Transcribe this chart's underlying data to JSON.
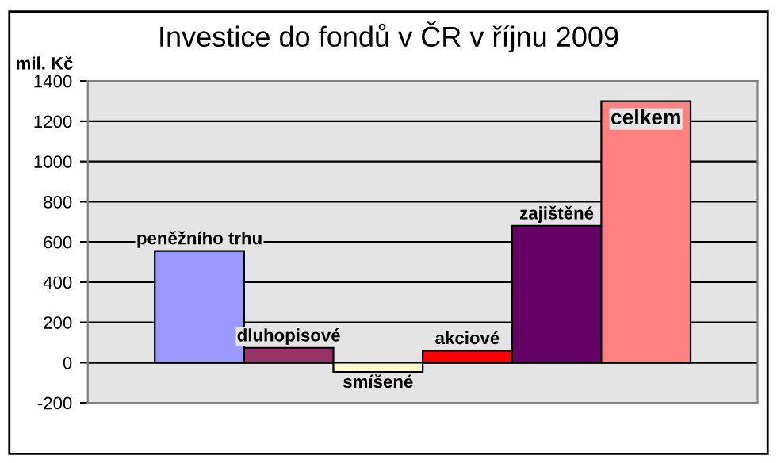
{
  "chart_data": {
    "type": "bar",
    "title": "Investice do fondů v ČR v říjnu 2009",
    "ylabel": "mil. Kč",
    "categories": [
      null
    ],
    "series": [
      {
        "name": "peněžního trhu",
        "color": "#9999ff",
        "values": [
          555
        ]
      },
      {
        "name": "dluhopisové",
        "color": "#993366",
        "values": [
          73
        ]
      },
      {
        "name": "smíšené",
        "color": "#ffffcc",
        "values": [
          -46
        ]
      },
      {
        "name": "akciové",
        "color": "#ff0000",
        "values": [
          59
        ]
      },
      {
        "name": "zajištěné",
        "color": "#660066",
        "values": [
          680
        ]
      },
      {
        "name": "celkem",
        "color": "#ff8080",
        "values": [
          1300
        ]
      }
    ],
    "ylim": [
      -200,
      1400
    ],
    "yticks": [
      -200,
      0,
      200,
      400,
      600,
      800,
      1000,
      1200,
      1400
    ],
    "grid": "y",
    "legend": false
  }
}
